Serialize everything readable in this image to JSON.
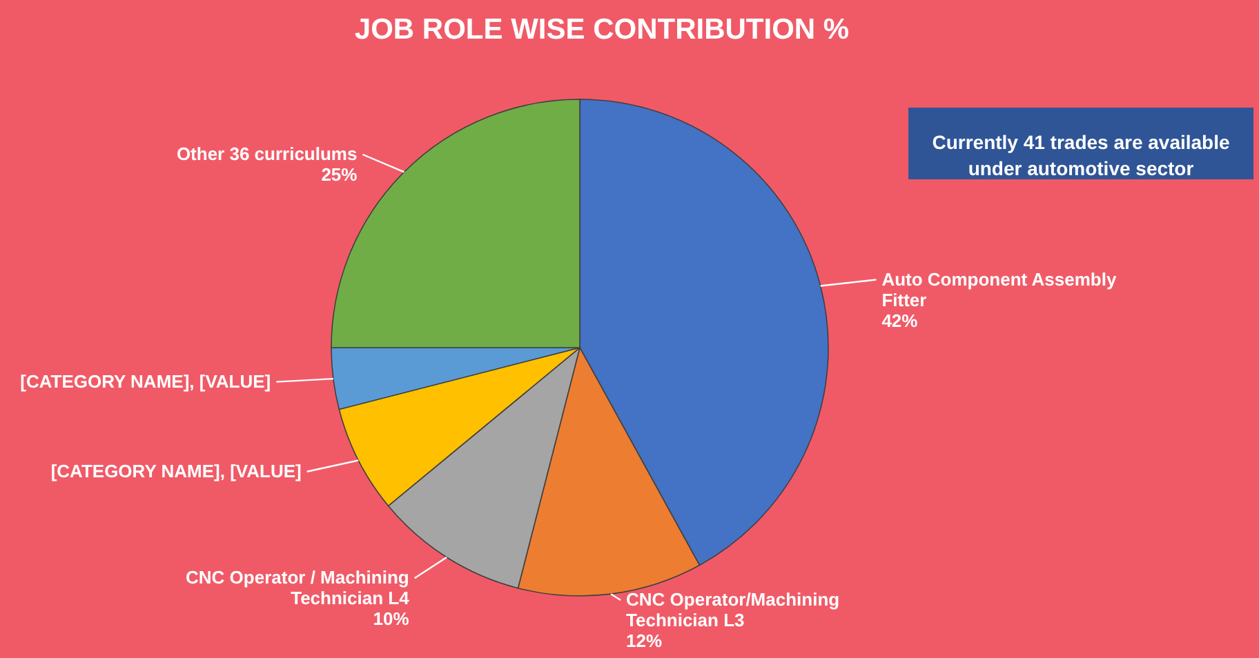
{
  "chart_data": {
    "type": "pie",
    "title": "JOB ROLE WISE CONTRIBUTION %",
    "categories": [
      "Auto Component Assembly Fitter",
      "CNC Operator/Machining Technician L3",
      "CNC Operator / Machining Technician L4",
      "[CATEGORY NAME], [VALUE]",
      "[CATEGORY NAME], [VALUE]",
      "Other 36 curriculums"
    ],
    "values": [
      42,
      12,
      10,
      7,
      4,
      25
    ],
    "colors": [
      "#4472c4",
      "#ed7d31",
      "#a5a5a5",
      "#ffc000",
      "#5b9bd5",
      "#70ad47"
    ],
    "value_labels": [
      "42%",
      "12%",
      "10%",
      null,
      null,
      "25%"
    ],
    "annotations": [
      "Currently 41 trades are available under automotive sector"
    ]
  }
}
